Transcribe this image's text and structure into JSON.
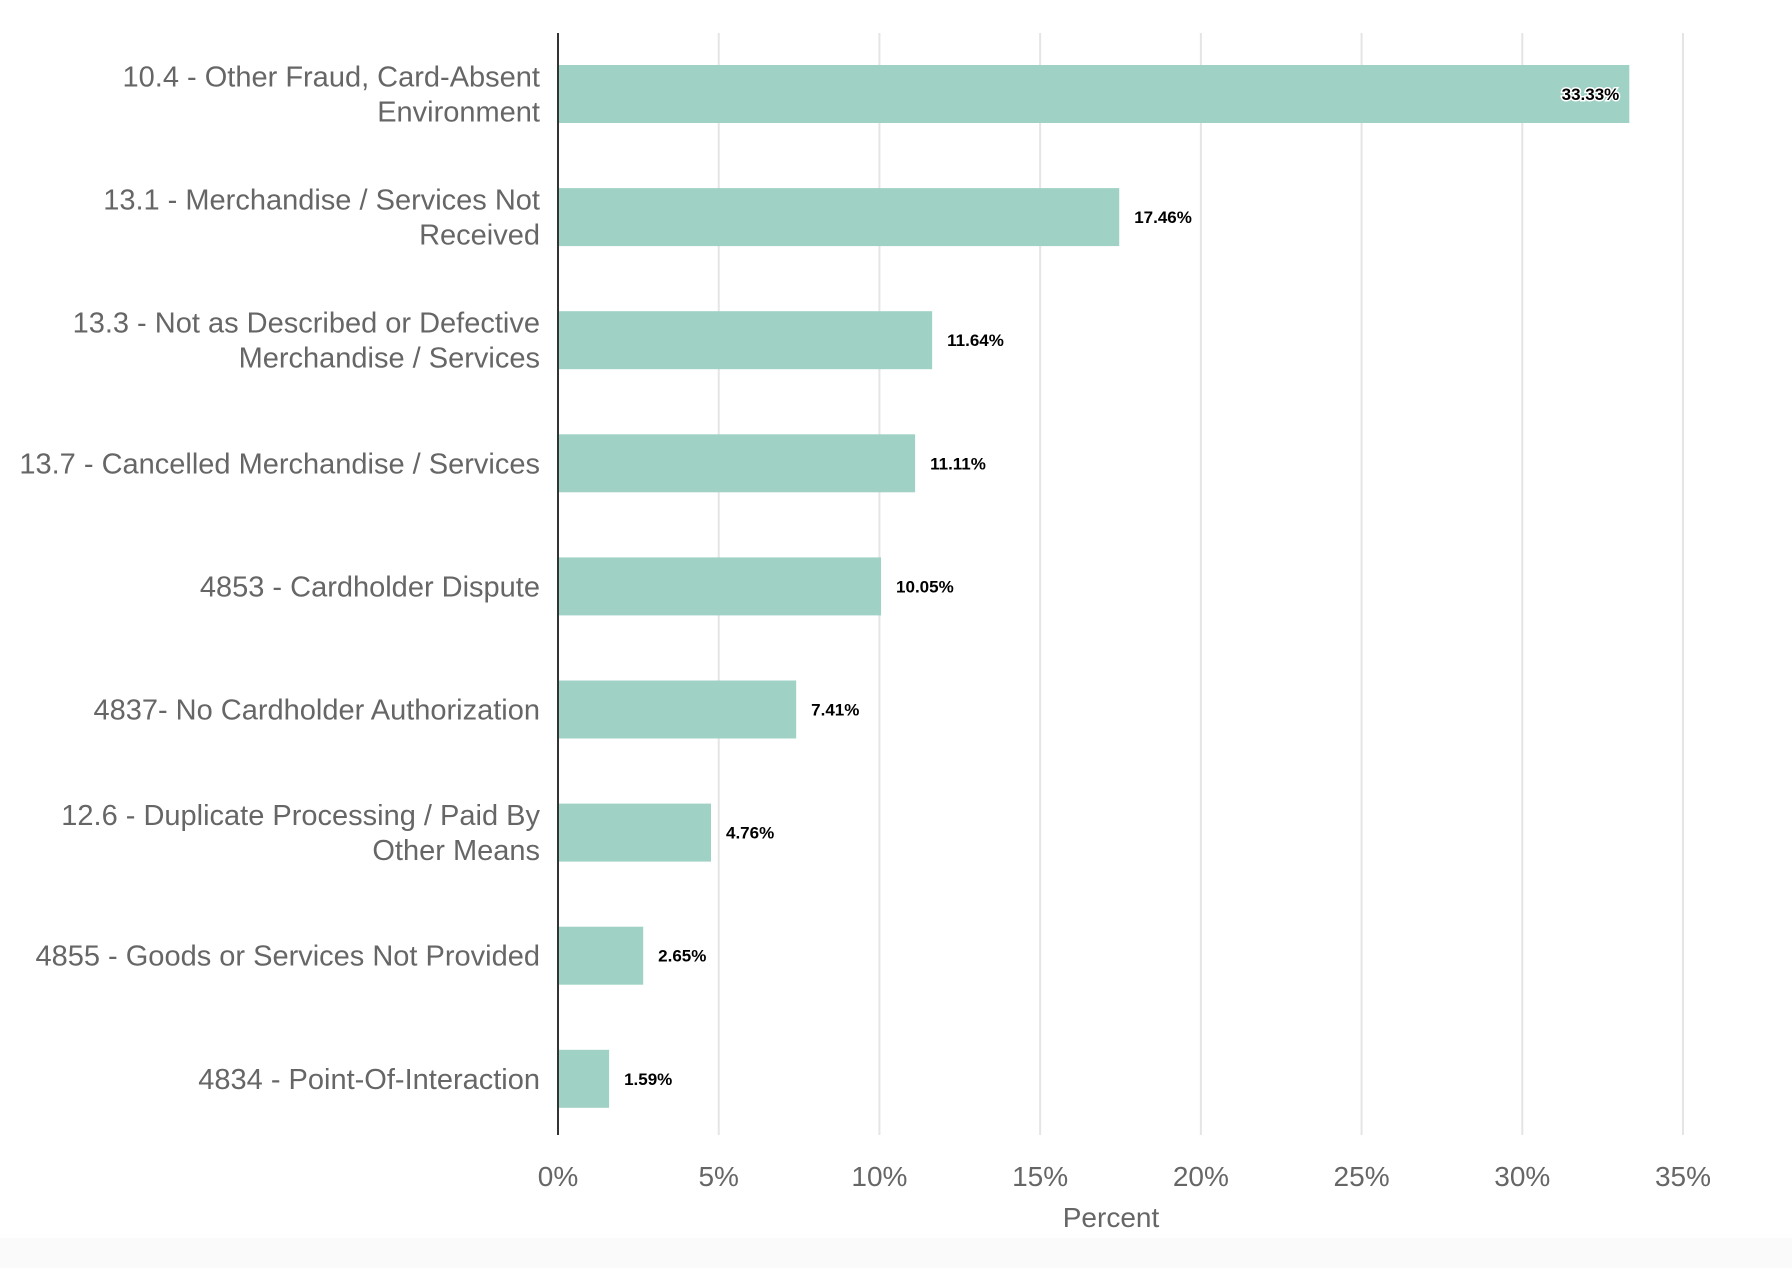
{
  "chart_data": {
    "type": "bar",
    "orientation": "horizontal",
    "categories": [
      [
        "10.4 - Other Fraud, Card-Absent",
        "Environment"
      ],
      [
        "13.1 - Merchandise / Services Not",
        "Received"
      ],
      [
        "13.3 - Not as Described or Defective",
        "Merchandise / Services"
      ],
      [
        "13.7 - Cancelled Merchandise / Services"
      ],
      [
        "4853 - Cardholder Dispute"
      ],
      [
        "4837- No Cardholder Authorization"
      ],
      [
        "12.6 - Duplicate Processing / Paid By",
        "Other Means"
      ],
      [
        "4855 - Goods or Services Not Provided"
      ],
      [
        "4834 - Point-Of-Interaction"
      ]
    ],
    "values": [
      33.33,
      17.46,
      11.64,
      11.11,
      10.05,
      7.41,
      4.76,
      2.65,
      1.59
    ],
    "data_labels": [
      "33.33%",
      "17.46%",
      "11.64%",
      "11.11%",
      "10.05%",
      "7.41%",
      "4.76%",
      "2.65%",
      "1.59%"
    ],
    "xlabel": "Percent",
    "ylabel": "",
    "xlim": [
      0,
      35
    ],
    "xticks": [
      0,
      5,
      10,
      15,
      20,
      25,
      30,
      35
    ],
    "xtick_labels": [
      "0%",
      "5%",
      "10%",
      "15%",
      "20%",
      "25%",
      "30%",
      "35%"
    ],
    "grid": "vertical",
    "bar_color": "#9fd1c5",
    "grid_color": "#e5e5e5",
    "axis_color": "#333333"
  }
}
